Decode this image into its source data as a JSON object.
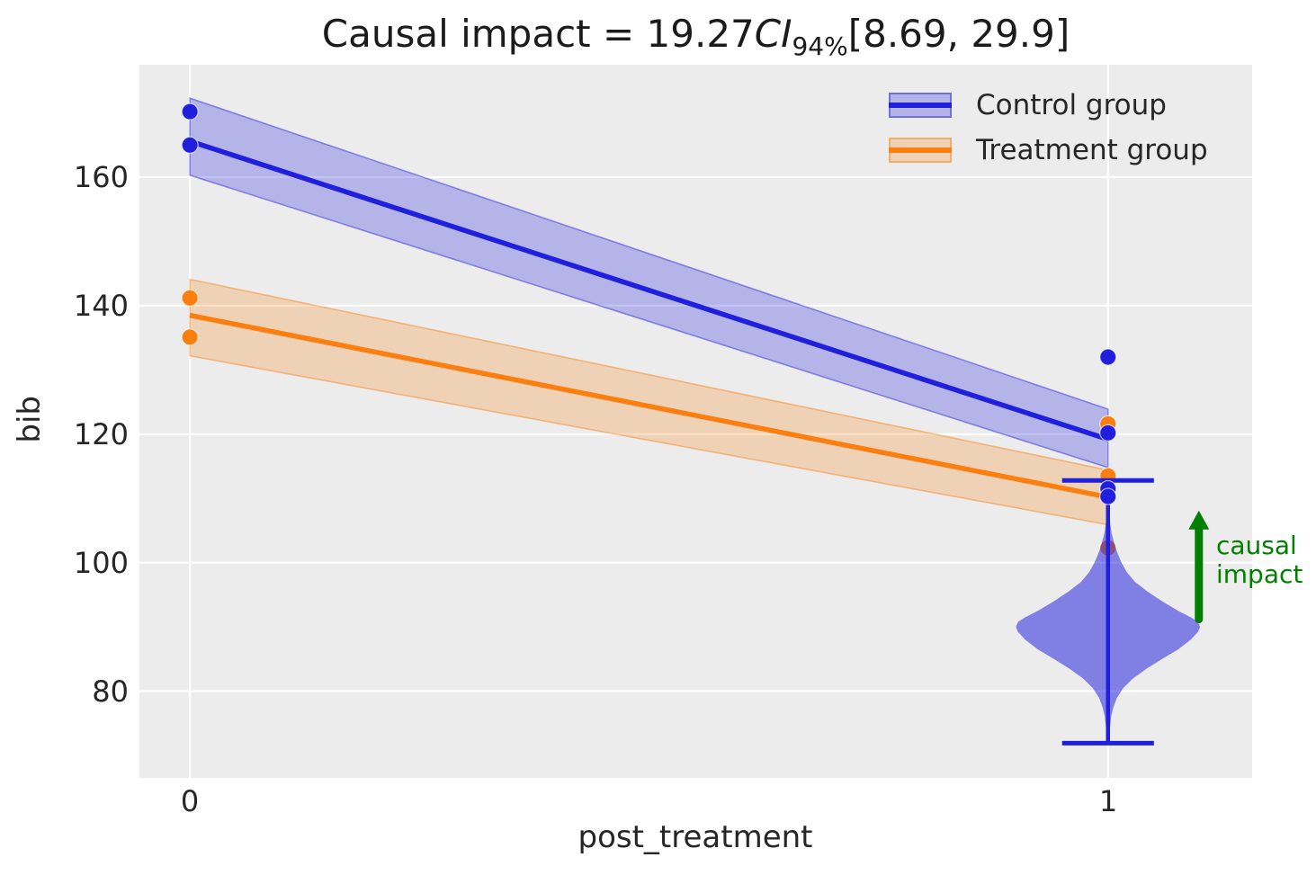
{
  "title": {
    "prefix": "Causal impact = 19.27",
    "ci": "CI",
    "ci_sub": "94%",
    "suffix": "[8.69, 29.9]"
  },
  "chart_data": {
    "type": "line",
    "title": "Causal impact = 19.27 CI94% [8.69, 29.9]",
    "xlabel": "post_treatment",
    "ylabel": "bib",
    "background": "#ececec",
    "grid": true,
    "grid_color": "#ffffff",
    "xlim": [
      -0.055,
      1.157
    ],
    "ylim": [
      66.5,
      177.5
    ],
    "xticks": [
      0,
      1
    ],
    "yticks": [
      160,
      140,
      120,
      100,
      80
    ],
    "xtick_labels": [
      "0",
      "1"
    ],
    "ytick_labels": [
      "160",
      "140",
      "120",
      "100",
      "80"
    ],
    "legend_position": "upper right",
    "series": [
      {
        "name": "Control group",
        "color": "#1f1fdd",
        "band_fill": "rgba(31,31,221,0.27)",
        "band_edge": "rgba(31,31,221,0.45)",
        "x": [
          0,
          1
        ],
        "y": [
          165.6,
          119.2
        ],
        "ci_upper": [
          172.3,
          123.9
        ],
        "ci_lower": [
          160.3,
          114.8
        ],
        "points": [
          {
            "x": 0,
            "y": 170.2
          },
          {
            "x": 0,
            "y": 165.0
          },
          {
            "x": 1,
            "y": 132.0
          },
          {
            "x": 1,
            "y": 120.2
          },
          {
            "x": 1,
            "y": 111.5
          },
          {
            "x": 1,
            "y": 110.3
          }
        ]
      },
      {
        "name": "Treatment group",
        "color": "#fb7e0e",
        "band_fill": "rgba(251,126,14,0.24)",
        "band_edge": "rgba(251,126,14,0.45)",
        "x": [
          0,
          1
        ],
        "y": [
          138.5,
          110.2
        ],
        "ci_upper": [
          144.1,
          114.4
        ],
        "ci_lower": [
          132.2,
          105.9
        ],
        "points": [
          {
            "x": 0,
            "y": 141.2
          },
          {
            "x": 0,
            "y": 135.1
          },
          {
            "x": 1,
            "y": 121.6
          },
          {
            "x": 1,
            "y": 113.5,
            "layer": "under-stem"
          },
          {
            "x": 1,
            "y": 102.3,
            "layer": "under-violin"
          }
        ]
      }
    ],
    "counterfactual": {
      "x": 1,
      "line_color": "#1f1fdd",
      "fill": "rgba(40,40,222,0.55)",
      "whisker_top": 112.8,
      "whisker_bottom": 71.9,
      "whisker_halfwidth_x": 0.05,
      "mean": 90.9,
      "violin_profile": [
        [
          107.5,
          0.0015
        ],
        [
          106,
          0.0025
        ],
        [
          104.5,
          0.004
        ],
        [
          103,
          0.0069
        ],
        [
          101.5,
          0.0103
        ],
        [
          100,
          0.0147
        ],
        [
          98.5,
          0.0206
        ],
        [
          97,
          0.0294
        ],
        [
          95.5,
          0.0431
        ],
        [
          94,
          0.0588
        ],
        [
          92.5,
          0.0764
        ],
        [
          91.5,
          0.0901
        ],
        [
          90.8,
          0.0979
        ],
        [
          90,
          0.1004
        ],
        [
          89.2,
          0.0979
        ],
        [
          88,
          0.0901
        ],
        [
          86.5,
          0.0764
        ],
        [
          85,
          0.0588
        ],
        [
          83.5,
          0.0421
        ],
        [
          82,
          0.0274
        ],
        [
          80.5,
          0.0167
        ],
        [
          79,
          0.0098
        ],
        [
          77.5,
          0.0059
        ],
        [
          76,
          0.0034
        ],
        [
          74,
          0.002
        ],
        [
          72.3,
          0.0015
        ]
      ]
    },
    "impact_arrow": {
      "x": 1.099,
      "y_from": 91.2,
      "y_to": 108.1,
      "color": "#007f00",
      "label_line1": "causal",
      "label_line2": "impact"
    }
  }
}
